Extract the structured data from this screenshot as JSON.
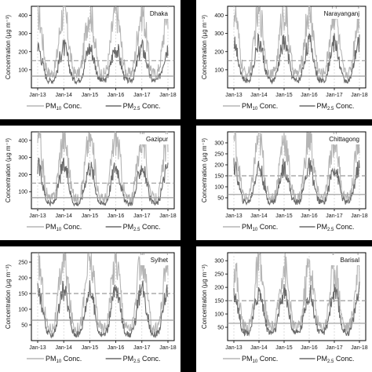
{
  "chart_data": [
    {
      "type": "line",
      "title": "Dhaka",
      "ylabel": "Concentration (µg m⁻³)",
      "y_ticks": [
        100,
        200,
        300,
        400
      ],
      "ylim": [
        0,
        450
      ],
      "x_ticks": [
        "Jan-13",
        "Jan-14",
        "Jan-15",
        "Jan-16",
        "Jan-17",
        "Jan-18"
      ],
      "series": [
        {
          "name": "PM10 Conc.",
          "peak_winter": 420,
          "trough_summer": 80
        },
        {
          "name": "PM2.5 Conc.",
          "peak_winter": 220,
          "trough_summer": 40
        }
      ],
      "reference_lines": [
        150,
        65
      ]
    },
    {
      "type": "line",
      "title": "Narayanganj",
      "ylabel": "Concentration (µg m⁻³)",
      "y_ticks": [
        100,
        200,
        300,
        400
      ],
      "ylim": [
        0,
        450
      ],
      "x_ticks": [
        "Jan-13",
        "Jan-14",
        "Jan-15",
        "Jan-16",
        "Jan-17",
        "Jan-18"
      ],
      "series": [
        {
          "name": "PM10 Conc.",
          "peak_winter": 420,
          "trough_summer": 80
        },
        {
          "name": "PM2.5 Conc.",
          "peak_winter": 250,
          "trough_summer": 40
        }
      ],
      "reference_lines": [
        150,
        65
      ]
    },
    {
      "type": "line",
      "title": "Gazipur",
      "ylabel": "Concentration (µg m⁻³)",
      "y_ticks": [
        100,
        200,
        300,
        400
      ],
      "ylim": [
        0,
        450
      ],
      "x_ticks": [
        "Jan-13",
        "Jan-14",
        "Jan-15",
        "Jan-16",
        "Jan-17",
        "Jan-18"
      ],
      "series": [
        {
          "name": "PM10 Conc.",
          "peak_winter": 420,
          "trough_summer": 60
        },
        {
          "name": "PM2.5 Conc.",
          "peak_winter": 250,
          "trough_summer": 30
        }
      ],
      "reference_lines": [
        150,
        65
      ]
    },
    {
      "type": "line",
      "title": "Chittagong",
      "ylabel": "Concentration (µg m⁻³)",
      "y_ticks": [
        50,
        100,
        150,
        200,
        250,
        300
      ],
      "ylim": [
        0,
        350
      ],
      "x_ticks": [
        "Jan-13",
        "Jan-14",
        "Jan-15",
        "Jan-16",
        "Jan-17",
        "Jan-18"
      ],
      "series": [
        {
          "name": "PM10 Conc.",
          "peak_winter": 320,
          "trough_summer": 50
        },
        {
          "name": "PM2.5 Conc.",
          "peak_winter": 190,
          "trough_summer": 30
        }
      ],
      "reference_lines": [
        150,
        65
      ]
    },
    {
      "type": "line",
      "title": "Sylhet",
      "ylabel": "Concentration (µg m⁻³)",
      "y_ticks": [
        50,
        100,
        150,
        200,
        250
      ],
      "ylim": [
        0,
        280
      ],
      "x_ticks": [
        "Jan-13",
        "Jan-14",
        "Jan-15",
        "Jan-16",
        "Jan-17",
        "Jan-18"
      ],
      "series": [
        {
          "name": "PM10 Conc.",
          "peak_winter": 260,
          "trough_summer": 40
        },
        {
          "name": "PM2.5 Conc.",
          "peak_winter": 160,
          "trough_summer": 20
        }
      ],
      "reference_lines": [
        150,
        65
      ]
    },
    {
      "type": "line",
      "title": "Barisal",
      "ylabel": "Concentration (µg m⁻³)",
      "y_ticks": [
        50,
        100,
        150,
        200,
        250,
        300
      ],
      "ylim": [
        0,
        330
      ],
      "x_ticks": [
        "Jan-13",
        "Jan-14",
        "Jan-15",
        "Jan-16",
        "Jan-17",
        "Jan-18"
      ],
      "series": [
        {
          "name": "PM10 Conc.",
          "peak_winter": 280,
          "trough_summer": 50
        },
        {
          "name": "PM2.5 Conc.",
          "peak_winter": 180,
          "trough_summer": 30
        }
      ],
      "reference_lines": [
        150,
        65
      ]
    }
  ],
  "legend": {
    "pm10": "PM",
    "pm10_sub": "10",
    "pm25": "PM",
    "pm25_sub": "2.5",
    "suffix": " Conc."
  },
  "colors": {
    "pm10": "#b5b5b5",
    "pm25": "#6a6a6a",
    "ref": "#9a9a9a",
    "frame": "#000000"
  }
}
